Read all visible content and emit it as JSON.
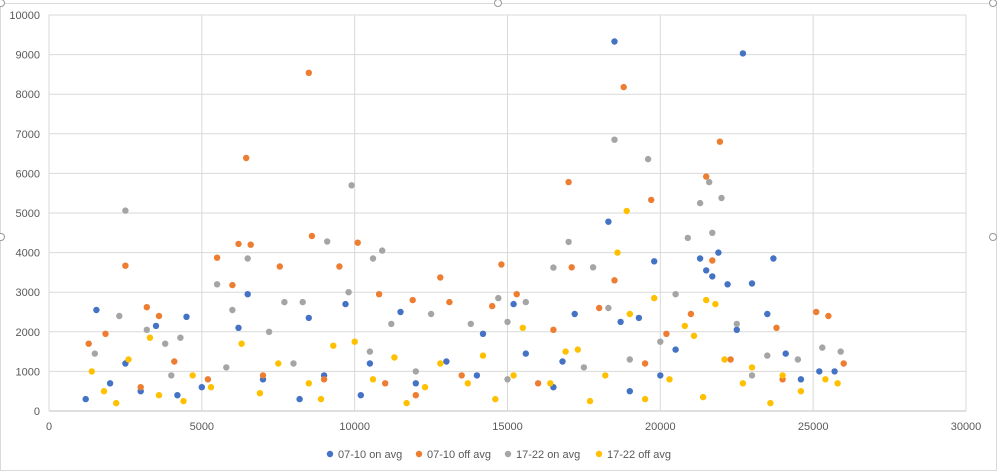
{
  "chart_data": {
    "type": "scatter",
    "title": "",
    "xlabel": "",
    "ylabel": "",
    "xlim": [
      0,
      30000
    ],
    "ylim": [
      0,
      10000
    ],
    "x_ticks": [
      "0",
      "5000",
      "10000",
      "15000",
      "20000",
      "25000",
      "30000"
    ],
    "y_ticks": [
      "0",
      "1000",
      "2000",
      "3000",
      "4000",
      "5000",
      "6000",
      "7000",
      "8000",
      "9000",
      "10000"
    ],
    "grid": true,
    "legend_position": "bottom",
    "series": [
      {
        "name": "07-10 on avg",
        "color": "#4472C4",
        "points": [
          [
            1550,
            2550
          ],
          [
            2500,
            1200
          ],
          [
            3500,
            2150
          ],
          [
            4500,
            2380
          ],
          [
            6200,
            2100
          ],
          [
            6500,
            2950
          ],
          [
            8500,
            2350
          ],
          [
            9700,
            2700
          ],
          [
            10500,
            1200
          ],
          [
            11500,
            2500
          ],
          [
            13000,
            1250
          ],
          [
            14200,
            1950
          ],
          [
            15200,
            2700
          ],
          [
            15600,
            1450
          ],
          [
            16800,
            1250
          ],
          [
            17200,
            2450
          ],
          [
            18300,
            4780
          ],
          [
            18500,
            9330
          ],
          [
            18700,
            2250
          ],
          [
            19300,
            2350
          ],
          [
            19800,
            3780
          ],
          [
            20500,
            1550
          ],
          [
            21300,
            3850
          ],
          [
            21500,
            3550
          ],
          [
            21700,
            3400
          ],
          [
            21900,
            4000
          ],
          [
            22200,
            3200
          ],
          [
            22500,
            2050
          ],
          [
            22700,
            9030
          ],
          [
            23000,
            3220
          ],
          [
            23500,
            2450
          ],
          [
            23700,
            3850
          ],
          [
            24100,
            1450
          ],
          [
            24600,
            800
          ],
          [
            25200,
            1000
          ],
          [
            25700,
            1000
          ],
          [
            2000,
            700
          ],
          [
            3000,
            500
          ],
          [
            5000,
            600
          ],
          [
            7000,
            800
          ],
          [
            9000,
            900
          ],
          [
            12000,
            700
          ],
          [
            14000,
            900
          ],
          [
            16500,
            600
          ],
          [
            20000,
            900
          ],
          [
            1200,
            300
          ],
          [
            4200,
            400
          ],
          [
            8200,
            300
          ],
          [
            10200,
            400
          ],
          [
            19000,
            500
          ]
        ]
      },
      {
        "name": "07-10 off avg",
        "color": "#ED7D31",
        "points": [
          [
            1300,
            1700
          ],
          [
            1850,
            1950
          ],
          [
            2500,
            3670
          ],
          [
            3200,
            2620
          ],
          [
            3600,
            2400
          ],
          [
            4100,
            1250
          ],
          [
            5500,
            3870
          ],
          [
            6000,
            3180
          ],
          [
            6200,
            4220
          ],
          [
            6450,
            6390
          ],
          [
            6600,
            4200
          ],
          [
            7550,
            3650
          ],
          [
            8500,
            8540
          ],
          [
            8600,
            4420
          ],
          [
            9500,
            3650
          ],
          [
            10100,
            4250
          ],
          [
            10800,
            2950
          ],
          [
            11900,
            2800
          ],
          [
            12800,
            3370
          ],
          [
            13100,
            2750
          ],
          [
            14500,
            2650
          ],
          [
            14800,
            3700
          ],
          [
            15300,
            2950
          ],
          [
            16500,
            2050
          ],
          [
            17000,
            5780
          ],
          [
            17100,
            3630
          ],
          [
            18000,
            2600
          ],
          [
            18500,
            3300
          ],
          [
            18800,
            8180
          ],
          [
            19700,
            5330
          ],
          [
            20200,
            1950
          ],
          [
            21000,
            2450
          ],
          [
            21500,
            5920
          ],
          [
            21700,
            3800
          ],
          [
            21950,
            6800
          ],
          [
            22300,
            1300
          ],
          [
            23800,
            2100
          ],
          [
            25100,
            2500
          ],
          [
            25500,
            2400
          ],
          [
            26000,
            1200
          ],
          [
            3000,
            600
          ],
          [
            5200,
            800
          ],
          [
            7000,
            900
          ],
          [
            9000,
            800
          ],
          [
            11000,
            700
          ],
          [
            13500,
            900
          ],
          [
            16000,
            700
          ],
          [
            19500,
            1200
          ],
          [
            24000,
            800
          ],
          [
            12000,
            400
          ]
        ]
      },
      {
        "name": "17-22 on avg",
        "color": "#A5A5A5",
        "points": [
          [
            1500,
            1450
          ],
          [
            2300,
            2400
          ],
          [
            2500,
            5060
          ],
          [
            3200,
            2050
          ],
          [
            3800,
            1700
          ],
          [
            4300,
            1850
          ],
          [
            5500,
            3200
          ],
          [
            6000,
            2550
          ],
          [
            6500,
            3850
          ],
          [
            7200,
            2000
          ],
          [
            7700,
            2750
          ],
          [
            8300,
            2750
          ],
          [
            9100,
            4280
          ],
          [
            9800,
            3000
          ],
          [
            9900,
            5700
          ],
          [
            10600,
            3850
          ],
          [
            10900,
            4050
          ],
          [
            11200,
            2200
          ],
          [
            12500,
            2450
          ],
          [
            13800,
            2200
          ],
          [
            14700,
            2850
          ],
          [
            15000,
            2250
          ],
          [
            15600,
            2750
          ],
          [
            16500,
            3620
          ],
          [
            17000,
            4270
          ],
          [
            17800,
            3630
          ],
          [
            18300,
            2600
          ],
          [
            18500,
            6850
          ],
          [
            19600,
            6360
          ],
          [
            20000,
            1750
          ],
          [
            20500,
            2950
          ],
          [
            20900,
            4370
          ],
          [
            21300,
            5250
          ],
          [
            21600,
            5780
          ],
          [
            21700,
            4500
          ],
          [
            22000,
            5380
          ],
          [
            22500,
            2200
          ],
          [
            23500,
            1400
          ],
          [
            24500,
            1300
          ],
          [
            25300,
            1600
          ],
          [
            25900,
            1500
          ],
          [
            4000,
            900
          ],
          [
            8000,
            1200
          ],
          [
            12000,
            1000
          ],
          [
            15000,
            800
          ],
          [
            17500,
            1100
          ],
          [
            19000,
            1300
          ],
          [
            23000,
            900
          ],
          [
            5800,
            1100
          ],
          [
            10500,
            1500
          ]
        ]
      },
      {
        "name": "17-22 off avg",
        "color": "#FFC000",
        "points": [
          [
            1400,
            1000
          ],
          [
            2600,
            1300
          ],
          [
            3300,
            1850
          ],
          [
            4700,
            900
          ],
          [
            6300,
            1700
          ],
          [
            7500,
            1200
          ],
          [
            9300,
            1650
          ],
          [
            10000,
            1750
          ],
          [
            11300,
            1350
          ],
          [
            12800,
            1200
          ],
          [
            14200,
            1400
          ],
          [
            15500,
            2100
          ],
          [
            16900,
            1500
          ],
          [
            17300,
            1550
          ],
          [
            18600,
            4000
          ],
          [
            18900,
            5050
          ],
          [
            19000,
            2450
          ],
          [
            19800,
            2850
          ],
          [
            20800,
            2150
          ],
          [
            21100,
            1900
          ],
          [
            21500,
            2800
          ],
          [
            21800,
            2700
          ],
          [
            22100,
            1300
          ],
          [
            23000,
            1100
          ],
          [
            24000,
            900
          ],
          [
            25400,
            800
          ],
          [
            25800,
            700
          ],
          [
            1800,
            500
          ],
          [
            3600,
            400
          ],
          [
            5300,
            600
          ],
          [
            6900,
            450
          ],
          [
            8500,
            700
          ],
          [
            10600,
            800
          ],
          [
            12300,
            600
          ],
          [
            13700,
            700
          ],
          [
            15200,
            900
          ],
          [
            16400,
            700
          ],
          [
            18200,
            900
          ],
          [
            20300,
            800
          ],
          [
            22700,
            700
          ],
          [
            24600,
            500
          ],
          [
            2200,
            200
          ],
          [
            4400,
            250
          ],
          [
            8900,
            300
          ],
          [
            11700,
            200
          ],
          [
            14600,
            300
          ],
          [
            17700,
            250
          ],
          [
            19500,
            300
          ],
          [
            21400,
            350
          ],
          [
            23600,
            200
          ]
        ]
      }
    ]
  }
}
